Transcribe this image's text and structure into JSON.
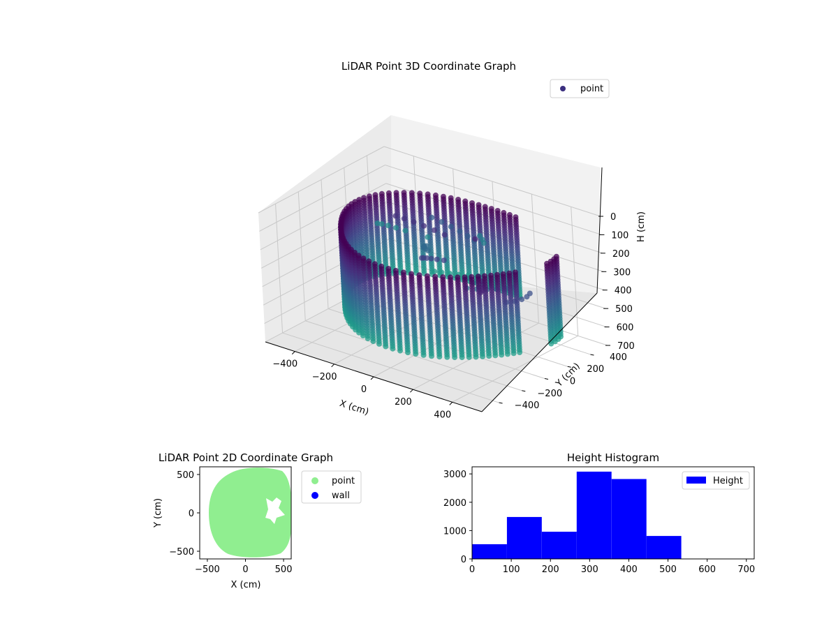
{
  "colors": {
    "point_3d_legend": "#3b2f7f",
    "point_2d": "#90ee90",
    "wall": "#0000ff",
    "histogram": "#0000ff",
    "pane": "#f2f2f2",
    "grid": "#cccccc"
  },
  "chart_data": [
    {
      "type": "scatter",
      "projection": "3d",
      "title": "LiDAR Point 3D Coordinate Graph",
      "xlabel": "X (cm)",
      "ylabel": "Y (cm)",
      "zlabel": "H (cm)",
      "x_ticks": [
        "−400",
        "−200",
        "0",
        "200",
        "400"
      ],
      "y_ticks": [
        "−400",
        "−200",
        "0",
        "200",
        "400"
      ],
      "z_ticks": [
        "0",
        "100",
        "200",
        "300",
        "400",
        "500",
        "600",
        "700"
      ],
      "xlim": [
        -550,
        550
      ],
      "ylim": [
        -550,
        550
      ],
      "zlim": [
        0,
        700
      ],
      "z_inverted": true,
      "colormap": "viridis",
      "legend": {
        "position": "upper-right",
        "entries": [
          "point"
        ]
      },
      "grid": true
    },
    {
      "type": "scatter",
      "title": "LiDAR Point 2D Coordinate Graph",
      "xlabel": "X (cm)",
      "ylabel": "Y (cm)",
      "x_ticks": [
        "−500",
        "0",
        "500"
      ],
      "y_ticks": [
        "−500",
        "0",
        "500"
      ],
      "xlim": [
        -600,
        600
      ],
      "ylim": [
        -600,
        600
      ],
      "series": [
        {
          "name": "point",
          "color": "#90ee90"
        },
        {
          "name": "wall",
          "color": "#0000ff"
        }
      ],
      "legend": {
        "position": "outside-right",
        "entries": [
          "point",
          "wall"
        ]
      },
      "grid": false
    },
    {
      "type": "bar",
      "subtype": "histogram",
      "title": "Height Histogram",
      "bin_edges": [
        0,
        89,
        178,
        267,
        356,
        445,
        534,
        623,
        712
      ],
      "values": [
        520,
        1480,
        960,
        3080,
        2820,
        810,
        0,
        0
      ],
      "x_ticks": [
        "0",
        "100",
        "200",
        "300",
        "400",
        "500",
        "600",
        "700"
      ],
      "y_ticks": [
        "0",
        "1000",
        "2000",
        "3000"
      ],
      "xlim": [
        0,
        720
      ],
      "ylim": [
        0,
        3250
      ],
      "series": [
        {
          "name": "Height",
          "color": "#0000ff"
        }
      ],
      "legend": {
        "position": "upper-right",
        "entries": [
          "Height"
        ]
      },
      "grid": false
    }
  ]
}
